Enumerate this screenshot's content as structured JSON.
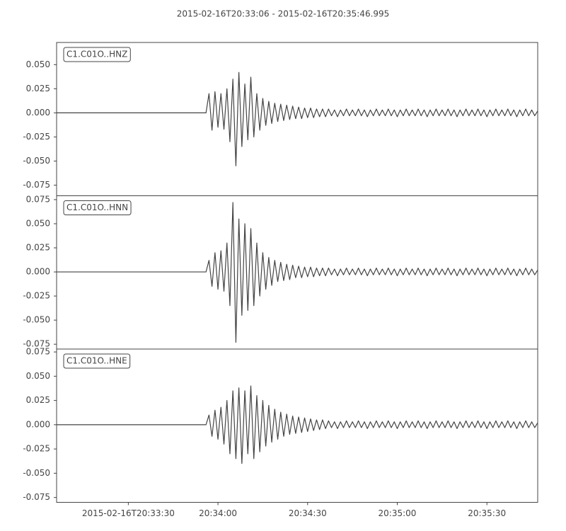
{
  "chart_data": [
    {
      "type": "line",
      "title": "2015-02-16T20:33:06  -  2015-02-16T20:35:46.995",
      "xlim": [
        0,
        161
      ],
      "ylim": [
        -0.086,
        0.073
      ],
      "yticks": [
        -0.075,
        {
          "value": -0.05,
          "label": "-0.050"
        },
        -0.025,
        {
          "value": 0,
          "label": "0.000"
        },
        0.025,
        {
          "value": 0.05,
          "label": "0.050"
        }
      ],
      "x": [
        0,
        50,
        51,
        52,
        53,
        54,
        55,
        56,
        57,
        58,
        59,
        60,
        61,
        62,
        63,
        64,
        65,
        66,
        67,
        68,
        69,
        70,
        71,
        72,
        73,
        74,
        75,
        76,
        77,
        78,
        79,
        80,
        81,
        82,
        83,
        84,
        85,
        86,
        87,
        88,
        89,
        90,
        91,
        92,
        93,
        94,
        95,
        96,
        97,
        98,
        99,
        100,
        101,
        102,
        103,
        104,
        105,
        106,
        107,
        108,
        109,
        110,
        111,
        112,
        113,
        114,
        115,
        116,
        117,
        118,
        119,
        120,
        121,
        122,
        123,
        124,
        125,
        126,
        127,
        128,
        129,
        130,
        131,
        132,
        133,
        134,
        135,
        136,
        137,
        138,
        139,
        140,
        141,
        142,
        143,
        144,
        145,
        146,
        147,
        148,
        149,
        150,
        151,
        152,
        153,
        154,
        155,
        156,
        157,
        158,
        159,
        160,
        161
      ],
      "series": [
        {
          "name": "C1.C01O..HNZ",
          "color": "#444444",
          "values": [
            0,
            0,
            0.02,
            -0.018,
            0.022,
            -0.015,
            0.02,
            -0.017,
            0.025,
            -0.03,
            0.035,
            -0.055,
            0.042,
            -0.035,
            0.03,
            -0.028,
            0.037,
            -0.025,
            0.02,
            -0.018,
            0.015,
            -0.013,
            0.012,
            -0.011,
            0.01,
            -0.009,
            0.009,
            -0.008,
            0.008,
            -0.007,
            0.007,
            -0.006,
            0.006,
            -0.006,
            0.005,
            -0.005,
            0.005,
            -0.005,
            0.004,
            -0.004,
            0.004,
            -0.004,
            0.004,
            -0.003,
            0.003,
            -0.004,
            0.003,
            -0.003,
            0.004,
            -0.003,
            0.003,
            -0.003,
            0.004,
            -0.003,
            0.003,
            -0.004,
            0.003,
            -0.003,
            0.004,
            -0.003,
            0.003,
            -0.003,
            0.004,
            -0.003,
            0.003,
            -0.004,
            0.003,
            -0.003,
            0.004,
            -0.003,
            0.003,
            -0.003,
            0.004,
            -0.003,
            0.003,
            -0.004,
            0.003,
            -0.003,
            0.004,
            -0.003,
            0.003,
            -0.003,
            0.004,
            -0.003,
            0.003,
            -0.004,
            0.003,
            -0.003,
            0.004,
            -0.003,
            0.003,
            -0.003,
            0.004,
            -0.003,
            0.003,
            -0.004,
            0.003,
            -0.003,
            0.004,
            -0.003,
            0.003,
            -0.003,
            0.004,
            -0.003,
            0.003,
            -0.004,
            0.003,
            -0.003,
            0.004,
            -0.003,
            0.003,
            -0.003,
            0.002
          ]
        }
      ]
    },
    {
      "type": "line",
      "xlim": [
        0,
        161
      ],
      "ylim": [
        -0.08,
        0.079
      ],
      "yticks": [
        -0.075,
        {
          "value": -0.05,
          "label": "-0.050"
        },
        -0.025,
        {
          "value": 0,
          "label": "0.000"
        },
        0.025,
        {
          "value": 0.05,
          "label": "0.050"
        },
        0.075
      ],
      "x": [
        0,
        50,
        51,
        52,
        53,
        54,
        55,
        56,
        57,
        58,
        59,
        60,
        61,
        62,
        63,
        64,
        65,
        66,
        67,
        68,
        69,
        70,
        71,
        72,
        73,
        74,
        75,
        76,
        77,
        78,
        79,
        80,
        81,
        82,
        83,
        84,
        85,
        86,
        87,
        88,
        89,
        90,
        91,
        92,
        93,
        94,
        95,
        96,
        97,
        98,
        99,
        100,
        101,
        102,
        103,
        104,
        105,
        106,
        107,
        108,
        109,
        110,
        111,
        112,
        113,
        114,
        115,
        116,
        117,
        118,
        119,
        120,
        121,
        122,
        123,
        124,
        125,
        126,
        127,
        128,
        129,
        130,
        131,
        132,
        133,
        134,
        135,
        136,
        137,
        138,
        139,
        140,
        141,
        142,
        143,
        144,
        145,
        146,
        147,
        148,
        149,
        150,
        151,
        152,
        153,
        154,
        155,
        156,
        157,
        158,
        159,
        160,
        161
      ],
      "series": [
        {
          "name": "C1.C01O..HNN",
          "color": "#444444",
          "values": [
            0,
            0,
            0.012,
            -0.015,
            0.02,
            -0.018,
            0.022,
            -0.02,
            0.03,
            -0.035,
            0.072,
            -0.073,
            0.055,
            -0.045,
            0.05,
            -0.04,
            0.045,
            -0.035,
            0.03,
            -0.025,
            0.02,
            -0.018,
            0.015,
            -0.014,
            0.012,
            -0.01,
            0.01,
            -0.009,
            0.008,
            -0.008,
            0.007,
            -0.006,
            0.006,
            -0.006,
            0.005,
            -0.005,
            0.005,
            -0.005,
            0.004,
            -0.004,
            0.004,
            -0.004,
            0.004,
            -0.003,
            0.003,
            -0.004,
            0.003,
            -0.003,
            0.004,
            -0.003,
            0.003,
            -0.003,
            0.004,
            -0.003,
            0.003,
            -0.004,
            0.003,
            -0.003,
            0.004,
            -0.003,
            0.003,
            -0.003,
            0.004,
            -0.003,
            0.003,
            -0.004,
            0.003,
            -0.003,
            0.004,
            -0.003,
            0.003,
            -0.003,
            0.004,
            -0.003,
            0.003,
            -0.004,
            0.003,
            -0.003,
            0.004,
            -0.003,
            0.003,
            -0.003,
            0.004,
            -0.003,
            0.003,
            -0.004,
            0.003,
            -0.003,
            0.004,
            -0.003,
            0.003,
            -0.003,
            0.004,
            -0.003,
            0.003,
            -0.004,
            0.003,
            -0.003,
            0.004,
            -0.003,
            0.003,
            -0.003,
            0.004,
            -0.003,
            0.003,
            -0.004,
            0.003,
            -0.003,
            0.004,
            -0.003,
            0.003,
            -0.003,
            0.002
          ]
        }
      ]
    },
    {
      "type": "line",
      "xlim": [
        0,
        161
      ],
      "ylim": [
        -0.08,
        0.078
      ],
      "xticks": [
        {
          "value": 24,
          "label": "2015-02-16T20:33:30"
        },
        {
          "value": 54,
          "label": "20:34:00"
        },
        {
          "value": 84,
          "label": "20:34:30"
        },
        {
          "value": 114,
          "label": "20:35:00"
        },
        {
          "value": 144,
          "label": "20:35:30"
        }
      ],
      "yticks": [
        -0.075,
        {
          "value": -0.05,
          "label": "-0.050"
        },
        -0.025,
        {
          "value": 0,
          "label": "0.000"
        },
        0.025,
        {
          "value": 0.05,
          "label": "0.050"
        },
        0.075
      ],
      "x": [
        0,
        50,
        51,
        52,
        53,
        54,
        55,
        56,
        57,
        58,
        59,
        60,
        61,
        62,
        63,
        64,
        65,
        66,
        67,
        68,
        69,
        70,
        71,
        72,
        73,
        74,
        75,
        76,
        77,
        78,
        79,
        80,
        81,
        82,
        83,
        84,
        85,
        86,
        87,
        88,
        89,
        90,
        91,
        92,
        93,
        94,
        95,
        96,
        97,
        98,
        99,
        100,
        101,
        102,
        103,
        104,
        105,
        106,
        107,
        108,
        109,
        110,
        111,
        112,
        113,
        114,
        115,
        116,
        117,
        118,
        119,
        120,
        121,
        122,
        123,
        124,
        125,
        126,
        127,
        128,
        129,
        130,
        131,
        132,
        133,
        134,
        135,
        136,
        137,
        138,
        139,
        140,
        141,
        142,
        143,
        144,
        145,
        146,
        147,
        148,
        149,
        150,
        151,
        152,
        153,
        154,
        155,
        156,
        157,
        158,
        159,
        160,
        161
      ],
      "series": [
        {
          "name": "C1.C01O..HNE",
          "color": "#444444",
          "values": [
            0,
            0,
            0.01,
            -0.012,
            0.015,
            -0.015,
            0.018,
            -0.02,
            0.025,
            -0.03,
            0.035,
            -0.035,
            0.038,
            -0.04,
            0.035,
            -0.03,
            0.04,
            -0.035,
            0.03,
            -0.028,
            0.025,
            -0.022,
            0.02,
            -0.018,
            0.016,
            -0.015,
            0.013,
            -0.012,
            0.011,
            -0.01,
            0.009,
            -0.009,
            0.008,
            -0.008,
            0.007,
            -0.007,
            0.006,
            -0.006,
            0.005,
            -0.005,
            0.005,
            -0.004,
            0.004,
            -0.003,
            0.003,
            -0.004,
            0.003,
            -0.003,
            0.004,
            -0.003,
            0.003,
            -0.003,
            0.004,
            -0.003,
            0.003,
            -0.004,
            0.003,
            -0.003,
            0.004,
            -0.003,
            0.003,
            -0.003,
            0.004,
            -0.003,
            0.003,
            -0.004,
            0.003,
            -0.003,
            0.004,
            -0.003,
            0.003,
            -0.003,
            0.004,
            -0.003,
            0.003,
            -0.004,
            0.003,
            -0.003,
            0.004,
            -0.003,
            0.003,
            -0.003,
            0.004,
            -0.003,
            0.003,
            -0.004,
            0.003,
            -0.003,
            0.004,
            -0.003,
            0.003,
            -0.003,
            0.004,
            -0.003,
            0.003,
            -0.004,
            0.003,
            -0.003,
            0.004,
            -0.003,
            0.003,
            -0.003,
            0.004,
            -0.003,
            0.003,
            -0.004,
            0.003,
            -0.003,
            0.004,
            -0.003,
            0.003,
            -0.003,
            0.002
          ]
        }
      ]
    }
  ]
}
